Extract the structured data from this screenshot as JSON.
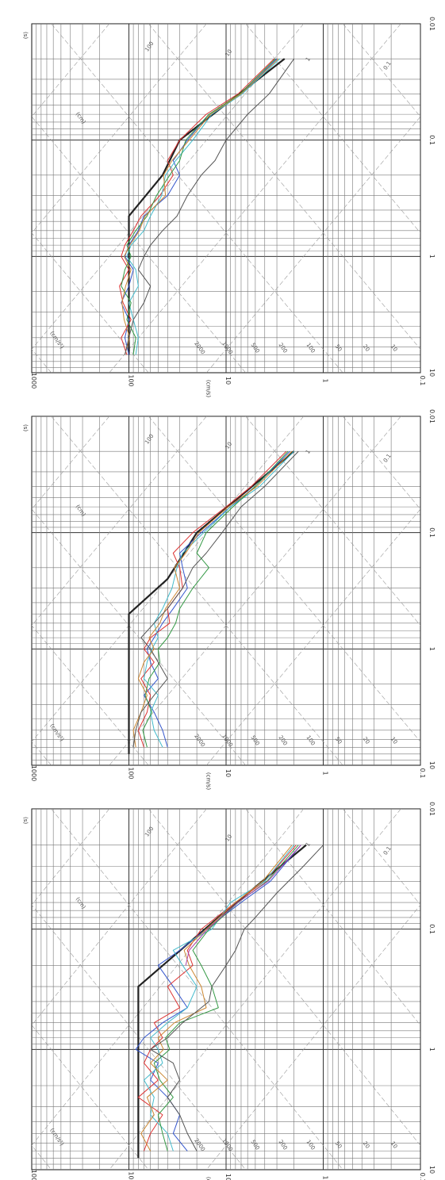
{
  "chart_data": [
    {
      "type": "line",
      "title": "",
      "xscale": "log",
      "yscale": "log",
      "xlim": [
        0.01,
        10
      ],
      "ylim": [
        0.1,
        1000
      ],
      "xticks": [
        "0.01",
        "0.1",
        "1",
        "10"
      ],
      "yticks": [
        "0.1",
        "1",
        "10",
        "100",
        "1000"
      ],
      "xunit": "(s)",
      "ylabel": "(cm/s)",
      "annotations": [
        "(cm/s²)",
        "(cm)"
      ],
      "diagonal_labels_disp": [
        "100",
        "10",
        "1",
        "0.1"
      ],
      "diagonal_labels_acc": [
        "2000",
        "1000",
        "500",
        "200",
        "100",
        "50",
        "20",
        "10"
      ],
      "series": [
        {
          "color": "#222222",
          "bold": true,
          "x": [
            0.02,
            0.08,
            0.3,
            8
          ],
          "y": [
            1.5,
            12,
            80,
            80
          ]
        },
        {
          "color": "#3355cc",
          "x": [
            0.02,
            0.04,
            0.06,
            0.1,
            0.15,
            0.2,
            0.3,
            0.45,
            0.6,
            0.8,
            1.0,
            1.3,
            1.8,
            2.5,
            3.5,
            5,
            7
          ],
          "y": [
            1.7,
            3.5,
            7,
            16,
            30,
            50,
            35,
            25,
            45,
            70,
            85,
            50,
            60,
            40,
            30,
            35,
            25
          ]
        },
        {
          "color": "#dd3333",
          "x": [
            0.02,
            0.04,
            0.06,
            0.1,
            0.15,
            0.2,
            0.3,
            0.45,
            0.6,
            0.8,
            1.0,
            1.3,
            1.8,
            2.5,
            3.5,
            5,
            7
          ],
          "y": [
            1.9,
            4,
            8,
            18,
            25,
            22,
            40,
            30,
            55,
            45,
            60,
            70,
            50,
            80,
            45,
            60,
            70
          ]
        },
        {
          "color": "#44bbcc",
          "x": [
            0.02,
            0.04,
            0.06,
            0.1,
            0.15,
            0.2,
            0.3,
            0.45,
            0.6,
            0.8,
            1.0,
            1.3,
            1.8,
            2.5,
            3.5,
            5,
            7
          ],
          "y": [
            2,
            4,
            9,
            14,
            35,
            28,
            20,
            25,
            40,
            60,
            50,
            45,
            70,
            55,
            60,
            40,
            35
          ]
        },
        {
          "color": "#339944",
          "x": [
            0.02,
            0.04,
            0.06,
            0.1,
            0.15,
            0.2,
            0.3,
            0.45,
            0.6,
            0.8,
            1.0,
            1.3,
            1.8,
            2.5,
            3.5,
            5,
            7
          ],
          "y": [
            1.8,
            3.8,
            7.5,
            15,
            22,
            18,
            14,
            12,
            30,
            42,
            38,
            55,
            48,
            35,
            50,
            45,
            40
          ]
        },
        {
          "color": "#cc8833",
          "x": [
            0.02,
            0.04,
            0.06,
            0.1,
            0.15,
            0.2,
            0.3,
            0.45,
            0.6,
            0.8,
            1.0,
            1.3,
            1.8,
            2.5,
            3.5,
            5,
            7
          ],
          "y": [
            2.1,
            4.2,
            8,
            16,
            27,
            24,
            18,
            16,
            34,
            50,
            44,
            60,
            40,
            65,
            55,
            75,
            60
          ]
        },
        {
          "color": "#555555",
          "x": [
            0.02,
            0.03,
            0.05,
            0.08,
            0.1,
            0.15,
            0.2,
            0.3,
            0.4,
            0.6,
            0.8,
            1.0,
            1.3,
            1.8,
            2.5,
            3.5,
            5,
            7
          ],
          "y": [
            1,
            1.6,
            3,
            5,
            6.5,
            8,
            10,
            14,
            15,
            28,
            40,
            60,
            35,
            30,
            40,
            30,
            25,
            20
          ]
        },
        {
          "color": "#aa44aa",
          "x": [
            0.02,
            0.04,
            0.06,
            0.1,
            0.15,
            0.2
          ],
          "y": [
            1.7,
            3.7,
            7.6,
            15.5,
            24,
            26
          ]
        }
      ]
    },
    {
      "type": "line",
      "title": "",
      "xscale": "log",
      "yscale": "log",
      "xlim": [
        0.01,
        10
      ],
      "ylim": [
        0.1,
        1000
      ],
      "xticks": [
        "0.01",
        "0.1",
        "1",
        "10"
      ],
      "yticks": [
        "0.1",
        "1",
        "10",
        "100",
        "1000"
      ],
      "xunit": "(s)",
      "ylabel": "(cm/s)",
      "annotations": [
        "(cm/s²)",
        "(cm)"
      ],
      "diagonal_labels_disp": [
        "100",
        "10",
        "1",
        "0.1"
      ],
      "diagonal_labels_acc": [
        "2000",
        "1000",
        "500",
        "200",
        "100",
        "50",
        "20",
        "10"
      ],
      "series": [
        {
          "color": "#222222",
          "bold": true,
          "x": [
            0.02,
            0.1,
            0.25,
            0.5,
            8
          ],
          "y": [
            2,
            20,
            40,
            100,
            100
          ]
        },
        {
          "color": "#3355cc",
          "x": [
            0.02,
            0.04,
            0.06,
            0.1,
            0.15,
            0.2,
            0.3,
            0.45,
            0.6,
            0.8,
            1.0,
            1.3,
            1.8,
            2.5,
            3.5,
            5,
            7
          ],
          "y": [
            2.2,
            5,
            9,
            18,
            30,
            28,
            25,
            35,
            45,
            55,
            65,
            60,
            50,
            70,
            55,
            45,
            40
          ]
        },
        {
          "color": "#dd3333",
          "x": [
            0.02,
            0.04,
            0.06,
            0.1,
            0.15,
            0.2,
            0.3,
            0.45,
            0.6,
            0.8,
            1.0,
            1.3,
            1.8,
            2.5,
            3.5,
            5,
            7
          ],
          "y": [
            2.4,
            5.5,
            10,
            22,
            35,
            30,
            28,
            40,
            38,
            60,
            70,
            55,
            75,
            60,
            65,
            80,
            70
          ]
        },
        {
          "color": "#44bbcc",
          "x": [
            0.02,
            0.04,
            0.06,
            0.1,
            0.15,
            0.2,
            0.3,
            0.45,
            0.6,
            0.8,
            1.0,
            1.3,
            1.8,
            2.5,
            3.5,
            5,
            7
          ],
          "y": [
            2,
            4.5,
            9,
            17,
            28,
            32,
            36,
            45,
            55,
            50,
            58,
            65,
            70,
            50,
            60,
            55,
            45
          ]
        },
        {
          "color": "#339944",
          "x": [
            0.02,
            0.04,
            0.06,
            0.1,
            0.15,
            0.2,
            0.3,
            0.45,
            0.6,
            0.8,
            1.0,
            1.3,
            1.8,
            2.5,
            3.5,
            5,
            7
          ],
          "y": [
            2.3,
            5,
            8.5,
            16,
            20,
            15,
            22,
            30,
            33,
            40,
            50,
            48,
            62,
            68,
            58,
            72,
            65
          ]
        },
        {
          "color": "#cc8833",
          "x": [
            0.02,
            0.04,
            0.06,
            0.1,
            0.15,
            0.2,
            0.3,
            0.45,
            0.6,
            0.8,
            1.0,
            1.3,
            1.8,
            2.5,
            3.5,
            5,
            7
          ],
          "y": [
            2.1,
            4.8,
            9.5,
            19,
            26,
            34,
            30,
            42,
            48,
            62,
            55,
            70,
            80,
            65,
            75,
            90,
            85
          ]
        },
        {
          "color": "#555555",
          "x": [
            0.02,
            0.04,
            0.06,
            0.1,
            0.15,
            0.2,
            0.3,
            0.45,
            0.6,
            0.8,
            1.0,
            1.3,
            1.8,
            2.5,
            3.5,
            5,
            7
          ],
          "y": [
            1.8,
            4,
            7,
            11,
            16,
            22,
            28,
            40,
            55,
            75,
            60,
            50,
            40,
            55,
            75,
            85,
            90
          ]
        }
      ]
    },
    {
      "type": "line",
      "title": "",
      "xscale": "log",
      "yscale": "log",
      "xlim": [
        0.01,
        10
      ],
      "ylim": [
        0.1,
        1000
      ],
      "xticks": [
        "0.01",
        "0.1",
        "1",
        "10"
      ],
      "yticks": [
        "0.1",
        "1",
        "10",
        "100",
        "1000"
      ],
      "xunit": "(s)",
      "ylabel": "(cm/s)",
      "annotations": [
        "(cm/s²)",
        "(cm)"
      ],
      "diagonal_labels_disp": [
        "100",
        "10",
        "1",
        "0.1"
      ],
      "diagonal_labels_acc": [
        "2000",
        "1000",
        "500",
        "200",
        "100",
        "50",
        "20",
        "10"
      ],
      "series": [
        {
          "color": "#222222",
          "bold": true,
          "x": [
            0.02,
            0.1,
            0.2,
            0.45,
            7
          ],
          "y": [
            2.5,
            30,
            45,
            100,
            100
          ]
        },
        {
          "color": "#3355cc",
          "x": [
            0.02,
            0.04,
            0.06,
            0.1,
            0.15,
            0.2,
            0.3,
            0.45,
            0.6,
            0.8,
            1.0,
            1.3,
            1.8,
            2.5,
            3.5,
            5,
            7
          ],
          "y": [
            3,
            7,
            15,
            25,
            35,
            30,
            40,
            70,
            80,
            100,
            110,
            90,
            100,
            120,
            100,
            110,
            100
          ]
        },
        {
          "color": "#dd3333",
          "x": [
            0.02,
            0.04,
            0.06,
            0.1,
            0.15,
            0.2,
            0.3,
            0.45,
            0.6,
            0.8,
            1.0,
            1.3,
            1.8,
            2.5,
            3.5,
            5,
            7
          ],
          "y": [
            3.2,
            7.5,
            16,
            30,
            40,
            35,
            48,
            75,
            90,
            110,
            120,
            100,
            125,
            115,
            95,
            120,
            105
          ]
        },
        {
          "color": "#44bbcc",
          "x": [
            0.02,
            0.04,
            0.06,
            0.1,
            0.15,
            0.2,
            0.3,
            0.45,
            0.6,
            0.8,
            1.0,
            1.3,
            1.8,
            2.5,
            3.5,
            5,
            7
          ],
          "y": [
            2.8,
            6.8,
            14,
            22,
            33,
            42,
            46,
            60,
            70,
            95,
            105,
            85,
            80,
            100,
            90,
            80,
            85
          ]
        },
        {
          "color": "#339944",
          "x": [
            0.02,
            0.04,
            0.06,
            0.1,
            0.15,
            0.2,
            0.3,
            0.45,
            0.6,
            0.8,
            1.0,
            1.3,
            1.8,
            2.5,
            3.5,
            5,
            7
          ],
          "y": [
            3.1,
            7.2,
            15,
            26,
            30,
            38,
            52,
            65,
            85,
            105,
            95,
            110,
            120,
            95,
            105,
            85,
            90
          ]
        },
        {
          "color": "#cc8833",
          "x": [
            0.02,
            0.04,
            0.06,
            0.1,
            0.15,
            0.2,
            0.3,
            0.45,
            0.6,
            0.8,
            1.0,
            1.3,
            1.8,
            2.5,
            3.5,
            5,
            7
          ],
          "y": [
            2.9,
            7,
            14.5,
            24,
            36,
            44,
            42,
            68,
            78,
            98,
            112,
            95,
            108,
            118,
            112,
            98,
            110
          ]
        },
        {
          "color": "#555555",
          "x": [
            0.02,
            0.04,
            0.06,
            0.1,
            0.15,
            0.2,
            0.3,
            0.45,
            0.6,
            0.8,
            1.0,
            1.3,
            1.8,
            2.5,
            3.5,
            5,
            7
          ],
          "y": [
            2,
            3.6,
            6,
            10,
            13,
            18,
            25,
            32,
            45,
            60,
            70,
            80,
            60,
            70,
            90,
            100,
            110
          ]
        }
      ]
    }
  ]
}
